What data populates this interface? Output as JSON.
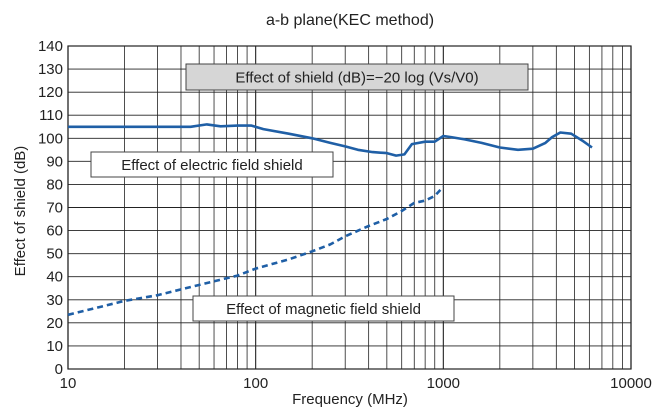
{
  "chart_data": {
    "type": "line",
    "title": "a-b plane(KEC method)",
    "xlabel": "Frequency (MHz)",
    "ylabel": "Effect of shield (dB)",
    "xscale": "log",
    "xlim": [
      10,
      10000
    ],
    "ylim": [
      0,
      140
    ],
    "grid": true,
    "x_ticks": [
      "10",
      "100",
      "1000",
      "10000"
    ],
    "y_ticks": [
      "0",
      "10",
      "20",
      "30",
      "40",
      "50",
      "60",
      "70",
      "80",
      "90",
      "100",
      "110",
      "120",
      "130",
      "140"
    ],
    "annotations": [
      {
        "text": "Effect of shield (dB)=−20 log (Vs/V0)",
        "style": "gray-box"
      },
      {
        "text": "Effect of electric field shield",
        "style": "white-box"
      },
      {
        "text": "Effect of magnetic field shield",
        "style": "white-box"
      }
    ],
    "series": [
      {
        "label_annotation": 1,
        "line_style": "solid",
        "color": "#1f5fa6",
        "points": [
          [
            10,
            105
          ],
          [
            20,
            105
          ],
          [
            30,
            105
          ],
          [
            45,
            105
          ],
          [
            55,
            106
          ],
          [
            65,
            105.2
          ],
          [
            80,
            105.5
          ],
          [
            95,
            105.5
          ],
          [
            110,
            104
          ],
          [
            150,
            102
          ],
          [
            200,
            100
          ],
          [
            250,
            98
          ],
          [
            300,
            96.5
          ],
          [
            350,
            95
          ],
          [
            420,
            94
          ],
          [
            500,
            93.6
          ],
          [
            560,
            92.5
          ],
          [
            620,
            93
          ],
          [
            680,
            97.5
          ],
          [
            800,
            98.5
          ],
          [
            900,
            98.5
          ],
          [
            1000,
            101
          ],
          [
            1100,
            100.5
          ],
          [
            1300,
            99.5
          ],
          [
            1600,
            98
          ],
          [
            2000,
            96
          ],
          [
            2500,
            95
          ],
          [
            3000,
            95.5
          ],
          [
            3500,
            98
          ],
          [
            3800,
            100.5
          ],
          [
            4200,
            102.5
          ],
          [
            4800,
            102
          ],
          [
            5500,
            99
          ],
          [
            6200,
            96
          ]
        ]
      },
      {
        "label_annotation": 2,
        "line_style": "dashed",
        "color": "#1f5fa6",
        "points": [
          [
            10,
            23.5
          ],
          [
            15,
            27
          ],
          [
            20,
            29.5
          ],
          [
            30,
            32
          ],
          [
            40,
            34.5
          ],
          [
            60,
            38
          ],
          [
            80,
            40.5
          ],
          [
            100,
            43.5
          ],
          [
            150,
            47.5
          ],
          [
            200,
            51
          ],
          [
            250,
            54
          ],
          [
            300,
            57.5
          ],
          [
            400,
            62
          ],
          [
            500,
            65
          ],
          [
            600,
            68.5
          ],
          [
            700,
            72
          ],
          [
            800,
            73
          ],
          [
            900,
            75
          ],
          [
            1000,
            79
          ]
        ]
      }
    ]
  }
}
